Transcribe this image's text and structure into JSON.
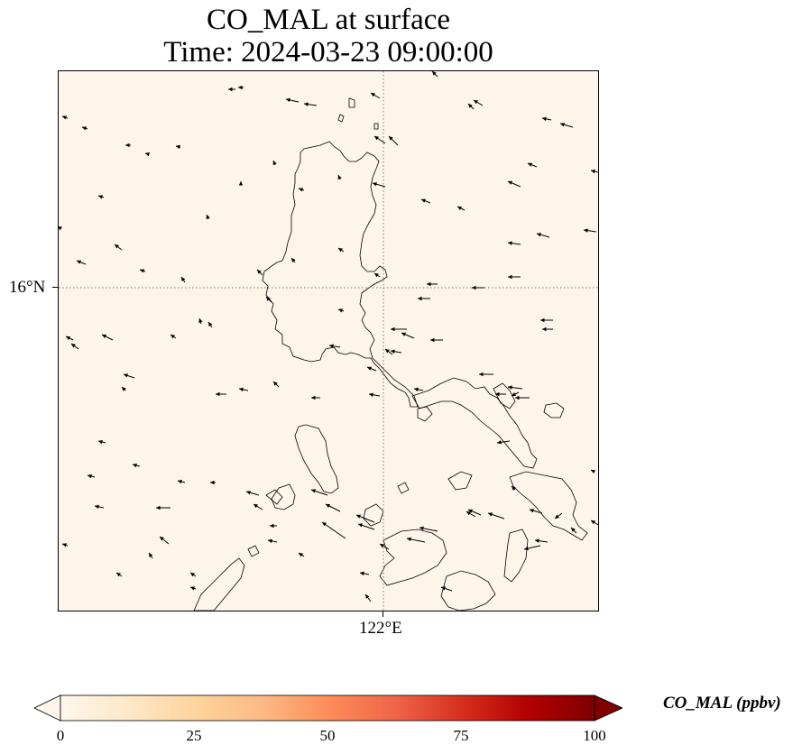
{
  "title": {
    "line1": "CO_MAL at surface",
    "line2": "Time: 2024-03-23 09:00:00"
  },
  "map": {
    "background_color": "#fdf5ea",
    "coastline_color": "#000000",
    "gridline_style": "dotted",
    "lat_label": "16°N",
    "lon_label": "122°E"
  },
  "colorbar": {
    "label": "CO_MAL (ppbv)",
    "ticks": [
      "0",
      "25",
      "50",
      "75",
      "100"
    ],
    "colormap": "OrRd",
    "extend": "both"
  }
}
